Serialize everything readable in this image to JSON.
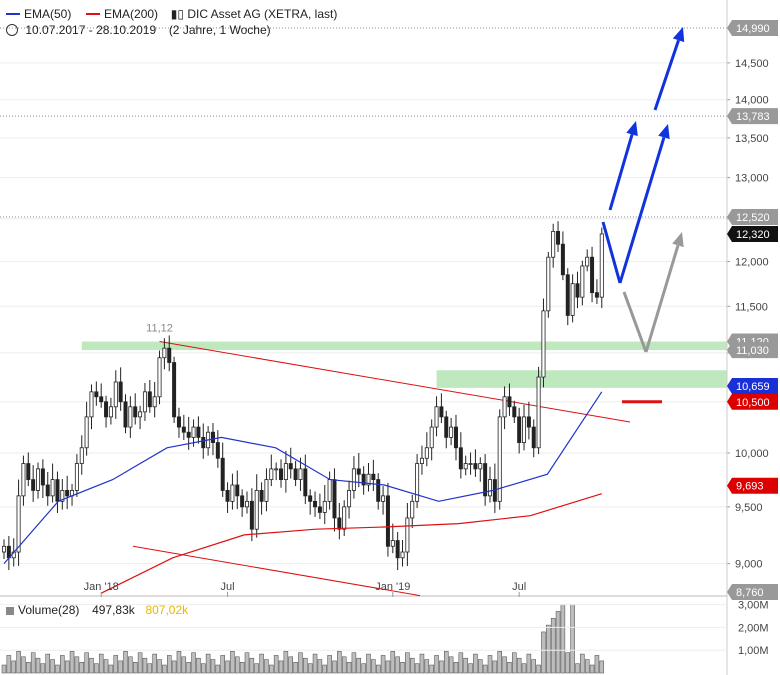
{
  "legend": {
    "ema50_label": "EMA(50)",
    "ema200_label": "EMA(200)",
    "instrument": "DIC Asset AG (XETRA, last)",
    "date_range": "10.07.2017 - 28.10.2019",
    "period": "(2 Jahre, 1 Woche)",
    "colors": {
      "ema50": "#2233cc",
      "ema200": "#dd1111",
      "candle": "#222222",
      "highlight": "#bfe8bf",
      "arrow_blue": "#1133dd",
      "arrow_gray": "#999999"
    }
  },
  "chart_data": [
    {
      "type": "candlestick",
      "ylim": [
        8.76,
        15.1
      ],
      "y_scale": "log",
      "y_ticks": [
        "9,000",
        "9,500",
        "10,000",
        "10,500",
        "11,000",
        "11,500",
        "12,000",
        "12,500",
        "13,000",
        "13,500",
        "14,000",
        "14,500"
      ],
      "x_ticks": [
        "Jan '18",
        "Jul",
        "Jan '19",
        "Jul"
      ],
      "grid": true,
      "price_tags": [
        {
          "label": "14,990",
          "value": 14.99,
          "style": "gray"
        },
        {
          "label": "13,783",
          "value": 13.783,
          "style": "gray"
        },
        {
          "label": "12,520",
          "value": 12.52,
          "style": "gray"
        },
        {
          "label": "12,320",
          "value": 12.32,
          "style": "black"
        },
        {
          "label": "11,120",
          "value": 11.12,
          "style": "gray"
        },
        {
          "label": "11,030",
          "value": 11.03,
          "style": "gray"
        },
        {
          "label": "10,659",
          "value": 10.659,
          "style": "blue"
        },
        {
          "label": "10,500",
          "value": 10.5,
          "style": "red"
        },
        {
          "label": "9,693",
          "value": 9.693,
          "style": "red"
        },
        {
          "label": "8,760",
          "value": 8.76,
          "style": "gray"
        }
      ],
      "annotations": [
        {
          "text": "11,12",
          "value": 11.12
        }
      ],
      "weekly_close": [
        9.15,
        9.05,
        9.1,
        9.6,
        9.9,
        9.75,
        9.65,
        9.85,
        9.7,
        9.6,
        9.75,
        9.55,
        9.65,
        9.6,
        9.65,
        9.9,
        10.05,
        10.35,
        10.6,
        10.55,
        10.5,
        10.35,
        10.45,
        10.7,
        10.5,
        10.25,
        10.45,
        10.35,
        10.4,
        10.6,
        10.45,
        10.55,
        10.95,
        11.05,
        10.9,
        10.35,
        10.25,
        10.2,
        10.15,
        10.25,
        10.15,
        10.05,
        10.2,
        10.1,
        9.95,
        9.65,
        9.55,
        9.7,
        9.6,
        9.5,
        9.55,
        9.3,
        9.65,
        9.55,
        9.75,
        9.85,
        9.85,
        9.75,
        9.9,
        9.85,
        9.75,
        9.85,
        9.6,
        9.55,
        9.5,
        9.45,
        9.55,
        9.75,
        9.4,
        9.3,
        9.5,
        9.65,
        9.85,
        9.8,
        9.7,
        9.8,
        9.75,
        9.55,
        9.6,
        9.15,
        9.2,
        9.05,
        9.1,
        9.4,
        9.55,
        9.9,
        9.95,
        10.05,
        10.25,
        10.45,
        10.35,
        10.15,
        10.25,
        10.05,
        9.85,
        9.9,
        9.9,
        9.85,
        9.9,
        9.6,
        9.75,
        9.55,
        10.35,
        10.55,
        10.45,
        10.35,
        10.1,
        10.35,
        10.25,
        10.05,
        10.75,
        11.45,
        12.05,
        12.35,
        12.2,
        11.85,
        11.4,
        11.75,
        11.6,
        11.95,
        12.05,
        11.65,
        11.6,
        12.32
      ],
      "ema50_anchor": [
        9.0,
        9.55,
        9.75,
        10.05,
        10.15,
        10.05,
        9.75,
        9.7,
        9.55,
        9.65,
        9.8,
        10.6
      ],
      "ema200_anchor": [
        8.75,
        9.05,
        9.25,
        9.3,
        9.32,
        9.35,
        9.42,
        9.62
      ],
      "volume_ticks": [
        "3,00M",
        "2,00M",
        "1,00M"
      ]
    }
  ],
  "volume_panel": {
    "label": "Volume(28)",
    "value1": "497,83k",
    "value2": "807,02k",
    "value2_color": "#e8b800"
  }
}
